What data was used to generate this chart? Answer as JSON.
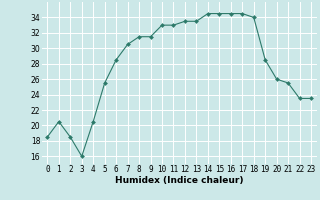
{
  "x": [
    0,
    1,
    2,
    3,
    4,
    5,
    6,
    7,
    8,
    9,
    10,
    11,
    12,
    13,
    14,
    15,
    16,
    17,
    18,
    19,
    20,
    21,
    22,
    23
  ],
  "y": [
    18.5,
    20.5,
    18.5,
    16.0,
    20.5,
    25.5,
    28.5,
    30.5,
    31.5,
    31.5,
    33.0,
    33.0,
    33.5,
    33.5,
    34.5,
    34.5,
    34.5,
    34.5,
    34.0,
    28.5,
    26.0,
    25.5,
    23.5,
    23.5
  ],
  "xlabel": "Humidex (Indice chaleur)",
  "xlim": [
    -0.5,
    23.5
  ],
  "ylim": [
    15,
    36
  ],
  "yticks": [
    16,
    18,
    20,
    22,
    24,
    26,
    28,
    30,
    32,
    34
  ],
  "xticks": [
    0,
    1,
    2,
    3,
    4,
    5,
    6,
    7,
    8,
    9,
    10,
    11,
    12,
    13,
    14,
    15,
    16,
    17,
    18,
    19,
    20,
    21,
    22,
    23
  ],
  "xtick_labels": [
    "0",
    "1",
    "2",
    "3",
    "4",
    "5",
    "6",
    "7",
    "8",
    "9",
    "10",
    "11",
    "12",
    "13",
    "14",
    "15",
    "16",
    "17",
    "18",
    "19",
    "20",
    "21",
    "22",
    "23"
  ],
  "line_color": "#2d7a6a",
  "marker": "D",
  "marker_size": 2.0,
  "bg_color": "#cce8e8",
  "grid_color": "#ffffff",
  "xlabel_fontsize": 6.5,
  "tick_fontsize": 5.5
}
